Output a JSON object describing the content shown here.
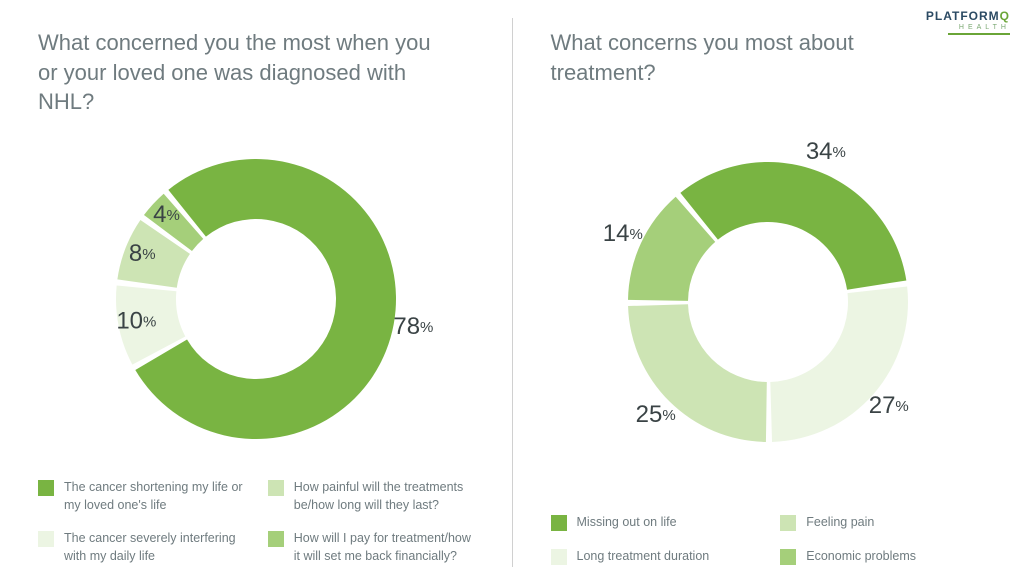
{
  "logo": {
    "brand": "PLATFORM",
    "accent": "Q",
    "sub": "HEALTH"
  },
  "panels": [
    {
      "title": "What concerned you the most when you or your loved one was diagnosed with NHL?",
      "chart": {
        "type": "donut",
        "outer_r": 140,
        "inner_r": 80,
        "gap_deg": 2.5,
        "start_angle": -40,
        "label_r": 122,
        "num_fontsize": 24,
        "sign_fontsize": 15,
        "background_color": "#ffffff",
        "slices": [
          {
            "value": 78,
            "color": "#79b442",
            "label_angle_override": null,
            "label_r_override": 160
          },
          {
            "value": 10,
            "color": "#ecf5e3"
          },
          {
            "value": 8,
            "color": "#cde4b4"
          },
          {
            "value": 4,
            "color": "#a5cf7a"
          }
        ]
      },
      "legend": [
        {
          "color": "#79b442",
          "label": "The cancer shortening my life or my loved one's life"
        },
        {
          "color": "#cde4b4",
          "label": "How painful will the treatments be/how long will they last?"
        },
        {
          "color": "#ecf5e3",
          "label": "The cancer severely interfering with my daily life"
        },
        {
          "color": "#a5cf7a",
          "label": "How will I pay for treatment/how it will set me back financially?"
        }
      ]
    },
    {
      "title": "What concerns you most about treatment?",
      "chart": {
        "type": "donut",
        "outer_r": 140,
        "inner_r": 80,
        "gap_deg": 2.5,
        "start_angle": -40,
        "label_r": 160,
        "num_fontsize": 24,
        "sign_fontsize": 15,
        "background_color": "#ffffff",
        "slices": [
          {
            "value": 34,
            "color": "#79b442"
          },
          {
            "value": 27,
            "color": "#ecf5e3"
          },
          {
            "value": 25,
            "color": "#cde4b4"
          },
          {
            "value": 14,
            "color": "#a5cf7a"
          }
        ]
      },
      "legend": [
        {
          "color": "#79b442",
          "label": "Missing out on life"
        },
        {
          "color": "#cde4b4",
          "label": "Feeling pain"
        },
        {
          "color": "#ecf5e3",
          "label": "Long treatment duration"
        },
        {
          "color": "#a5cf7a",
          "label": "Economic problems"
        }
      ]
    }
  ]
}
